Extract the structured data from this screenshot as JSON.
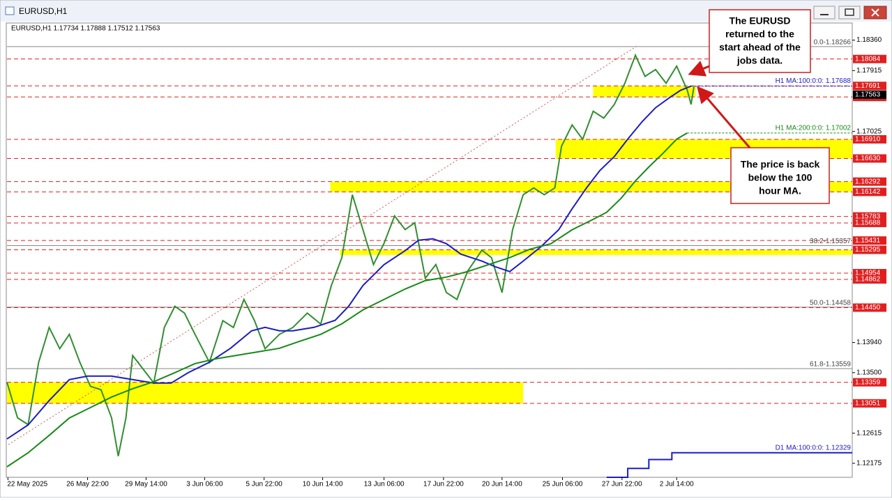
{
  "window_title": "EURUSD,H1",
  "chart_data": {
    "type": "line",
    "info": "EURUSD,H1  1.17734 1.17888 1.17512 1.17563",
    "last_price": 1.17563,
    "xlim": [
      0,
      881
    ],
    "ylim": [
      1.1197,
      1.1859
    ],
    "xticks": [
      {
        "value": 1,
        "label": "22 May 2025"
      },
      {
        "value": 84,
        "label": "26 May 22:00"
      },
      {
        "value": 145,
        "label": "29 May 14:00"
      },
      {
        "value": 206,
        "label": "3 Jun 06:00"
      },
      {
        "value": 268,
        "label": "5 Jun 22:00"
      },
      {
        "value": 329,
        "label": "10 Jun 14:00"
      },
      {
        "value": 393,
        "label": "13 Jun 06:00"
      },
      {
        "value": 455,
        "label": "17 Jun 22:00"
      },
      {
        "value": 516,
        "label": "20 Jun 14:00"
      },
      {
        "value": 579,
        "label": "25 Jun 06:00"
      },
      {
        "value": 641,
        "label": "27 Jun 22:00"
      },
      {
        "value": 698,
        "label": "2 Jul 14:00"
      }
    ],
    "yticks": [
      1.12175,
      1.12615,
      {
        "value": 1.135,
        "label": "1.13500"
      },
      {
        "value": 1.1394,
        "label": "1.13940"
      },
      1.17025,
      1.17915,
      {
        "value": 1.1836,
        "label": "1.18360"
      }
    ],
    "series": [
      {
        "color": "#2f8f2f",
        "x": [
          0,
          11,
          22,
          33,
          44,
          55,
          65,
          76,
          87,
          98,
          109,
          116,
          124,
          131,
          142,
          153,
          164,
          175,
          185,
          196,
          211,
          225,
          236,
          247,
          258,
          269,
          284,
          298,
          313,
          327,
          338,
          349,
          360,
          371,
          382,
          393,
          404,
          415,
          425,
          436,
          447,
          458,
          469,
          480,
          495,
          505,
          516,
          527,
          538,
          549,
          560,
          571,
          578,
          589,
          600,
          611,
          622,
          633,
          644,
          655,
          665,
          676,
          687,
          698,
          709,
          713,
          716
        ],
        "values": [
          1.1336,
          1.1284,
          1.1274,
          1.1365,
          1.1416,
          1.1385,
          1.1406,
          1.1365,
          1.133,
          1.1325,
          1.1284,
          1.1228,
          1.1284,
          1.1375,
          1.1355,
          1.1335,
          1.1416,
          1.1447,
          1.1437,
          1.1406,
          1.1365,
          1.1426,
          1.1416,
          1.1457,
          1.1426,
          1.1385,
          1.1406,
          1.1416,
          1.1437,
          1.1421,
          1.1477,
          1.1518,
          1.161,
          1.1559,
          1.1508,
          1.1539,
          1.1579,
          1.1559,
          1.1569,
          1.1488,
          1.1508,
          1.1467,
          1.1457,
          1.1498,
          1.1529,
          1.1518,
          1.1467,
          1.1559,
          1.161,
          1.162,
          1.161,
          1.162,
          1.1681,
          1.1712,
          1.1691,
          1.1732,
          1.1722,
          1.1742,
          1.1773,
          1.1814,
          1.1783,
          1.1793,
          1.1773,
          1.1798,
          1.1763,
          1.1742,
          1.1768
        ]
      },
      {
        "name": "H1 MA:100:0:0: 1.17688",
        "color": "#1b1bc8",
        "extend": true,
        "x": [
          0,
          22,
          44,
          65,
          84,
          109,
          131,
          153,
          171,
          189,
          211,
          233,
          255,
          269,
          284,
          298,
          320,
          342,
          356,
          371,
          393,
          415,
          429,
          444,
          458,
          473,
          495,
          509,
          524,
          538,
          556,
          575,
          589,
          604,
          618,
          633,
          647,
          662,
          676,
          691,
          702,
          713
        ],
        "values": [
          1.12531,
          1.12735,
          1.13092,
          1.13398,
          1.13449,
          1.13449,
          1.13398,
          1.13347,
          1.13347,
          1.135,
          1.13652,
          1.13856,
          1.14111,
          1.14162,
          1.14111,
          1.14111,
          1.14162,
          1.14264,
          1.14468,
          1.14773,
          1.15079,
          1.15283,
          1.15436,
          1.15456,
          1.15385,
          1.15232,
          1.1513,
          1.15048,
          1.14977,
          1.1513,
          1.15334,
          1.15588,
          1.15894,
          1.162,
          1.16455,
          1.16658,
          1.16913,
          1.17168,
          1.17372,
          1.17524,
          1.17626,
          1.17688
        ]
      },
      {
        "name": "H1 MA:200:0:0: 1.17002",
        "color": "#168a16",
        "extend": true,
        "x": [
          0,
          22,
          44,
          65,
          87,
          109,
          131,
          153,
          175,
          196,
          218,
          240,
          262,
          284,
          305,
          327,
          349,
          371,
          393,
          415,
          436,
          458,
          480,
          502,
          524,
          545,
          567,
          589,
          611,
          625,
          640,
          655,
          669,
          684,
          698,
          709
        ],
        "values": [
          1.12124,
          1.12328,
          1.12583,
          1.12837,
          1.1299,
          1.13143,
          1.13265,
          1.13367,
          1.135,
          1.13632,
          1.13703,
          1.13754,
          1.13805,
          1.13856,
          1.13958,
          1.1406,
          1.14213,
          1.14417,
          1.1457,
          1.14722,
          1.14845,
          1.14896,
          1.14977,
          1.15079,
          1.15181,
          1.15303,
          1.15385,
          1.15588,
          1.15741,
          1.15843,
          1.16047,
          1.16302,
          1.16506,
          1.16709,
          1.16913,
          1.17002
        ]
      },
      {
        "name": "D1 MA:100:0:0: 1.12329",
        "color": "#1b1bc8",
        "x": [
          625,
          647,
          647,
          669,
          669,
          693,
          693,
          881
        ],
        "values": [
          1.1197,
          1.1197,
          1.121,
          1.121,
          1.1223,
          1.1223,
          1.12329,
          1.12329
        ]
      }
    ],
    "levels": [
      1.18084,
      1.17691,
      1.17529,
      {
        "value": 1.1691,
        "label": "1.16910"
      },
      {
        "value": 1.1663,
        "label": "1.16630"
      },
      1.16292,
      1.16142,
      1.15783,
      1.15688,
      1.15431,
      1.15295,
      1.14954,
      1.14862,
      {
        "value": 1.1445,
        "label": "1.14450"
      },
      1.13359,
      1.13051
    ],
    "level_color": "#e02020",
    "fib_levels": [
      {
        "value": 1.18266,
        "label": "0.0-1.18266"
      },
      {
        "value": 1.15357,
        "label": "38.2-1.15357"
      },
      {
        "value": 1.14458,
        "label": "50.0-1.14458"
      },
      {
        "value": 1.13559,
        "label": "61.8-1.13559"
      }
    ],
    "zones": [
      {
        "x": [
          611,
          718
        ],
        "y": [
          1.17529,
          1.17691
        ]
      },
      {
        "x": [
          572,
          881
        ],
        "y": [
          1.1663,
          1.1691
        ]
      },
      {
        "x": [
          337,
          881
        ],
        "y": [
          1.16142,
          1.16292
        ]
      },
      {
        "x": [
          347,
          881
        ],
        "y": [
          1.1522,
          1.15295
        ]
      },
      {
        "x": [
          0,
          538
        ],
        "y": [
          1.13051,
          1.13359
        ]
      }
    ],
    "zone_color": "#ffff00",
    "annotations": [
      {
        "lines": [
          "The EURUSD",
          "returned to the",
          "start ahead of the",
          "jobs data."
        ]
      },
      {
        "lines": [
          "The price is back",
          "below the 100",
          "hour MA."
        ]
      }
    ]
  }
}
